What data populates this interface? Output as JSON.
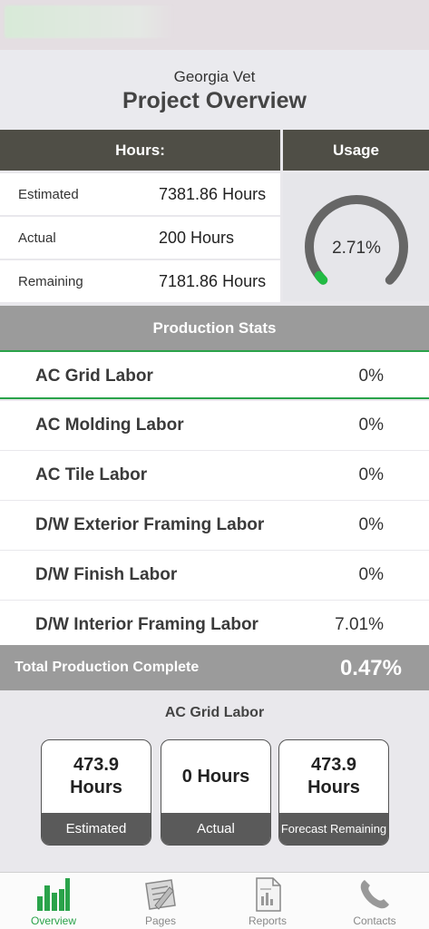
{
  "header": {
    "subtitle": "Georgia Vet",
    "title": "Project Overview"
  },
  "hours": {
    "heading": "Hours:",
    "rows": [
      {
        "label": "Estimated",
        "value": "7381.86 Hours"
      },
      {
        "label": "Actual",
        "value": "200 Hours"
      },
      {
        "label": "Remaining",
        "value": "7181.86 Hours"
      }
    ]
  },
  "usage": {
    "heading": "Usage",
    "percent_text": "2.71%",
    "fraction": 0.0271,
    "track_color": "#666666",
    "progress_color": "#22bb44"
  },
  "production": {
    "heading": "Production Stats",
    "rows": [
      {
        "name": "AC Grid Labor",
        "pct": "0%"
      },
      {
        "name": "AC Molding Labor",
        "pct": "0%"
      },
      {
        "name": "AC Tile Labor",
        "pct": "0%"
      },
      {
        "name": "D/W Exterior Framing Labor",
        "pct": "0%"
      },
      {
        "name": "D/W Finish Labor",
        "pct": "0%"
      },
      {
        "name": "D/W Interior Framing Labor",
        "pct": "7.01%"
      }
    ],
    "total_label": "Total Production Complete",
    "total_value": "0.47%"
  },
  "detail": {
    "title": "AC Grid Labor",
    "cards": [
      {
        "value": "473.9 Hours",
        "label": "Estimated"
      },
      {
        "value": "0 Hours",
        "label": "Actual"
      },
      {
        "value": "473.9 Hours",
        "label": "Forecast Remaining"
      }
    ]
  },
  "tabs": [
    {
      "label": "Overview",
      "icon": "bar-chart-icon",
      "active": true
    },
    {
      "label": "Pages",
      "icon": "blueprint-icon",
      "active": false
    },
    {
      "label": "Reports",
      "icon": "document-icon",
      "active": false
    },
    {
      "label": "Contacts",
      "icon": "phone-icon",
      "active": false
    }
  ],
  "colors": {
    "accent": "#2aa34a",
    "header_dark": "#4f4e46",
    "section_gray": "#9b9b9b"
  }
}
